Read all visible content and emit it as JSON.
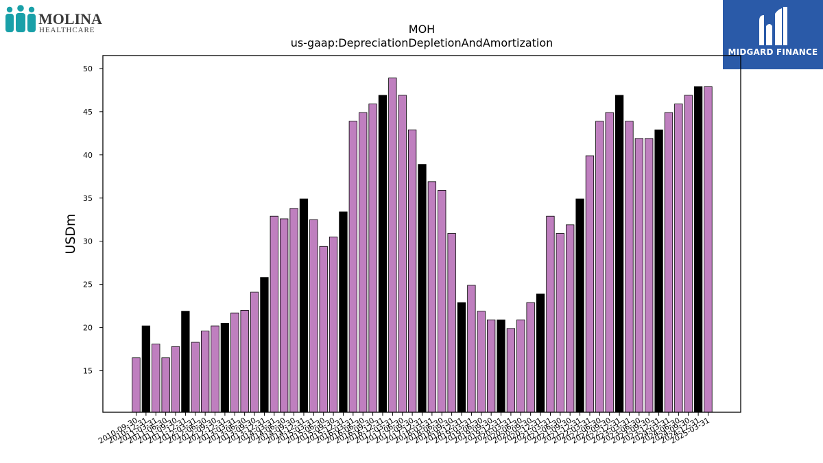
{
  "logos": {
    "left_line1": "MOLINA",
    "left_line2": "HEALTHCARE",
    "right_text": "MIDGARD FINANCE"
  },
  "colors": {
    "bar_default": "#bf7fbf",
    "bar_highlight": "#000000",
    "bar_edge": "#000000",
    "molina_teal": "#19a0a8",
    "molina_text": "#3a3a3a",
    "midgard_blue": "#2a5aa8"
  },
  "chart_data": {
    "type": "bar",
    "title": "MOH",
    "subtitle": "us-gaap:DepreciationDepletionAndAmortization",
    "xlabel": "",
    "ylabel": "USDm",
    "ylim": [
      10.2,
      51.5
    ],
    "yticks": [
      15,
      20,
      25,
      30,
      35,
      40,
      45,
      50
    ],
    "grid": false,
    "highlight_rule": "black bars mark fiscal year-end (12-31) periods",
    "categories": [
      "2010-09-30",
      "2010-12-31",
      "2011-03-31",
      "2011-06-30",
      "2011-09-30",
      "2011-12-31",
      "2012-03-31",
      "2012-06-30",
      "2012-09-30",
      "2012-12-31",
      "2013-03-31",
      "2013-06-30",
      "2013-09-30",
      "2013-12-31",
      "2014-03-31",
      "2014-06-30",
      "2014-09-30",
      "2014-12-31",
      "2015-03-31",
      "2015-06-30",
      "2015-09-30",
      "2015-12-31",
      "2016-03-31",
      "2016-06-30",
      "2016-09-30",
      "2016-12-31",
      "2017-03-31",
      "2017-06-30",
      "2017-09-30",
      "2017-12-31",
      "2018-03-31",
      "2018-06-30",
      "2018-09-30",
      "2018-12-31",
      "2019-03-31",
      "2019-06-30",
      "2019-09-30",
      "2019-12-31",
      "2020-03-31",
      "2020-06-30",
      "2020-09-30",
      "2020-12-31",
      "2021-03-31",
      "2021-06-30",
      "2021-09-30",
      "2021-12-31",
      "2022-03-31",
      "2022-06-30",
      "2022-09-30",
      "2022-12-31",
      "2023-03-31",
      "2023-06-30",
      "2023-09-30",
      "2023-12-31",
      "2024-03-31",
      "2024-06-30",
      "2024-09-30",
      "2024-12-31",
      "2025-03-31"
    ],
    "values": [
      16.5,
      20.2,
      18.1,
      16.5,
      17.8,
      21.9,
      18.3,
      19.6,
      20.2,
      20.5,
      21.7,
      22.0,
      24.1,
      25.8,
      32.9,
      32.6,
      33.8,
      34.9,
      32.5,
      29.4,
      30.5,
      33.4,
      43.9,
      44.9,
      45.9,
      46.9,
      48.9,
      46.9,
      42.9,
      38.9,
      36.9,
      35.9,
      30.9,
      22.9,
      24.9,
      21.9,
      20.9,
      20.9,
      19.9,
      20.9,
      22.9,
      23.9,
      32.9,
      30.9,
      31.9,
      34.9,
      39.9,
      43.9,
      44.9,
      46.9,
      43.9,
      41.9,
      41.9,
      42.9,
      44.9,
      45.9,
      46.9,
      47.9,
      47.9
    ]
  }
}
